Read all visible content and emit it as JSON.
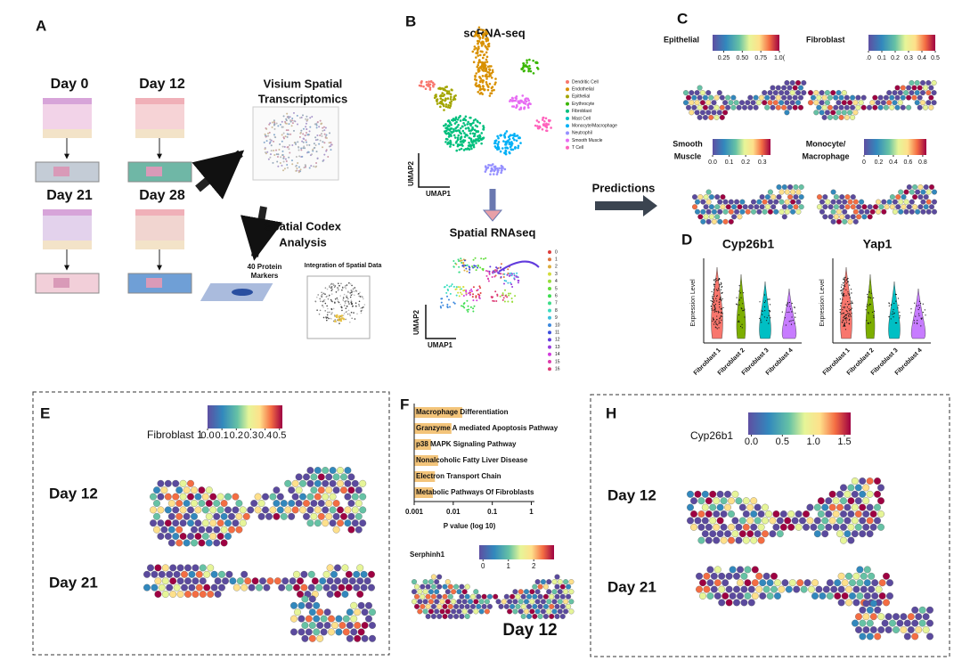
{
  "panels": {
    "A": {
      "label": "A",
      "timepoints": [
        "Day 0",
        "Day 12",
        "Day 21",
        "Day 28"
      ],
      "visium": [
        "Visium Spatial",
        "Transcriptomics"
      ],
      "codex": [
        "Spatial Codex",
        "Analysis"
      ],
      "markers": [
        "40 Protein",
        "Markers"
      ],
      "integration": "Integration of Spatial Data"
    },
    "B": {
      "label": "B",
      "sc_title": "scRNA-seq",
      "x_axis": "UMAP1",
      "y_axis": "UMAP2",
      "cell_types": [
        {
          "name": "Dendritic Cell",
          "color": "#f8766d"
        },
        {
          "name": "Endothelial",
          "color": "#d89000"
        },
        {
          "name": "Epithelial",
          "color": "#a3a500"
        },
        {
          "name": "Erythrocyte",
          "color": "#39b600"
        },
        {
          "name": "Fibroblast",
          "color": "#00bf7d"
        },
        {
          "name": "Mast Cell",
          "color": "#00bfc4"
        },
        {
          "name": "Monocyte/Macrophage",
          "color": "#00b0f6"
        },
        {
          "name": "Neutrophil",
          "color": "#9590ff"
        },
        {
          "name": "Smooth Muscle",
          "color": "#e76bf3"
        },
        {
          "name": "T Cell",
          "color": "#ff62bc"
        }
      ],
      "sp_title": "Spatial RNAseq",
      "clusters": [
        "0",
        "1",
        "2",
        "3",
        "4",
        "5",
        "6",
        "7",
        "8",
        "9",
        "10",
        "11",
        "12",
        "13",
        "14",
        "15",
        "16"
      ],
      "predictions": "Predictions"
    },
    "C": {
      "label": "C",
      "maps": [
        {
          "name": [
            "Epithelial"
          ],
          "lim": [
            0.1,
            1.0
          ],
          "ticks": [
            0.25,
            {
              "value": 0.5,
              "label": "0.50"
            },
            0.75,
            {
              "value": 1.0,
              "label": "1.0("
            }
          ]
        },
        {
          "name": [
            "Fibroblast"
          ],
          "lim": [
            0,
            0.5
          ],
          "ticks": [
            {
              "value": 0,
              "label": ".0"
            },
            0.1,
            0.2,
            0.3,
            0.4,
            0.5
          ]
        },
        {
          "name": [
            "Smooth",
            "Muscle"
          ],
          "lim": [
            0,
            0.35
          ],
          "ticks": [
            {
              "value": 0,
              "label": "0.0"
            },
            0.1,
            0.2,
            0.3
          ]
        },
        {
          "name": [
            "Monocyte/",
            "Macrophage"
          ],
          "lim": [
            0,
            0.85
          ],
          "ticks": [
            0,
            0.2,
            0.4,
            0.6,
            0.8
          ]
        }
      ]
    },
    "D": {
      "label": "D",
      "plots": [
        {
          "title": "Cyp26b1"
        },
        {
          "title": "Yap1"
        }
      ],
      "y_axis": "Expression Level",
      "groups": [
        "Fibroblast 1",
        "Fibroblast 2",
        "Fibroblast 3",
        "Fibroblast 4"
      ]
    },
    "E": {
      "label": "E",
      "legend": "Fibroblast 1",
      "lim": [
        0,
        0.52
      ],
      "ticks": [
        {
          "value": 0,
          "label": "0.0"
        },
        0.1,
        0.2,
        0.3,
        0.4,
        0.5
      ],
      "days": [
        "Day 12",
        "Day 21"
      ]
    },
    "F": {
      "label": "F",
      "map_legend": "Serphinh1",
      "map_lim": [
        -0.15,
        2.8
      ],
      "map_ticks": [
        0,
        1,
        2
      ],
      "day": "Day 12"
    },
    "H": {
      "label": "H",
      "legend": "Cyp26b1",
      "lim": [
        -0.05,
        1.6
      ],
      "ticks": [
        {
          "value": 0,
          "label": "0.0"
        },
        0.5,
        {
          "value": 1,
          "label": "1.0"
        },
        1.5
      ],
      "days": [
        "Day 12",
        "Day 21"
      ]
    }
  },
  "chart_data": {
    "type": "bar",
    "orientation": "horizontal",
    "log_scale": true,
    "color": "#f3c47a",
    "categories": [
      "Macrophage Differentiation",
      "Granzyme A mediated Apoptosis Pathway",
      "p38 MAPK Signaling Pathway",
      "Nonalcoholic Fatty Liver Disease",
      "Electron Transport Chain",
      "Metabolic Pathways Of Fibroblasts"
    ],
    "values": [
      0.017,
      0.009,
      0.0027,
      0.0041,
      0.0034,
      0.003
    ],
    "xlim": [
      0.001,
      1.2
    ],
    "xticks": [
      0.001,
      0.01,
      0.1,
      1
    ],
    "xlabel": "P value (log 10)"
  }
}
